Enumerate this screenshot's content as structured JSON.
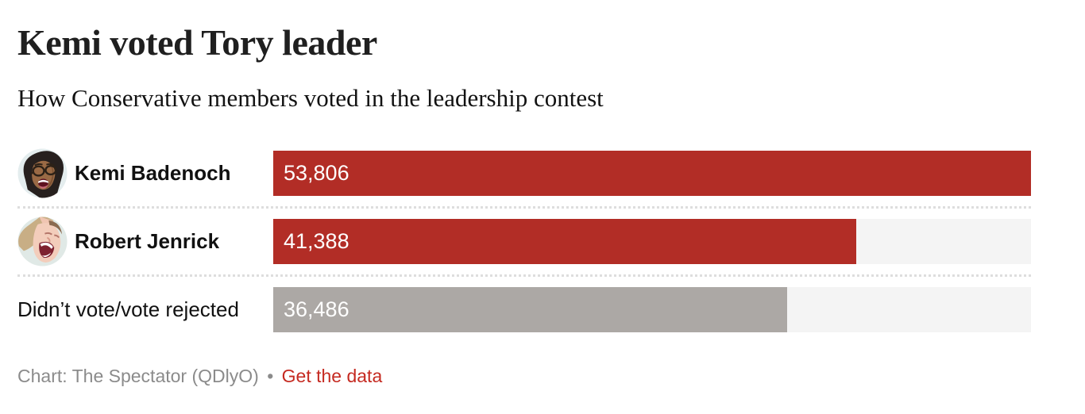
{
  "header": {
    "title": "Kemi voted Tory leader",
    "subtitle": "How Conservative members voted in the leadership contest"
  },
  "chart_data": {
    "type": "bar",
    "orientation": "horizontal",
    "title": "Kemi voted Tory leader",
    "subtitle": "How Conservative members voted in the leadership contest",
    "categories": [
      "Kemi Badenoch",
      "Robert Jenrick",
      "Didn’t vote/vote rejected"
    ],
    "values": [
      53806,
      41388,
      36486
    ],
    "value_labels": [
      "53,806",
      "41,388",
      "36,486"
    ],
    "bar_colors": [
      "#b22d26",
      "#b22d26",
      "#aca8a5"
    ],
    "track_color": "#f4f4f4",
    "xlim": [
      0,
      53806
    ],
    "grid": false,
    "legend": false,
    "xlabel": "",
    "ylabel": ""
  },
  "rows": [
    {
      "label": "Kemi Badenoch",
      "value": 53806,
      "value_label": "53,806",
      "color": "#b22d26",
      "bold": true,
      "avatar": "kemi-badenoch"
    },
    {
      "label": "Robert Jenrick",
      "value": 41388,
      "value_label": "41,388",
      "color": "#b22d26",
      "bold": true,
      "avatar": "robert-jenrick"
    },
    {
      "label": "Didn’t vote/vote rejected",
      "value": 36486,
      "value_label": "36,486",
      "color": "#aca8a5",
      "bold": false,
      "avatar": null
    }
  ],
  "footer": {
    "credit": "Chart: The Spectator (QDlyO)",
    "separator": "•",
    "link_label": "Get the data"
  },
  "colors": {
    "bar_red": "#b22d26",
    "bar_gray": "#aca8a5",
    "track": "#f4f4f4",
    "footer_gray": "#8b8b8b",
    "link_red": "#c52a21"
  }
}
